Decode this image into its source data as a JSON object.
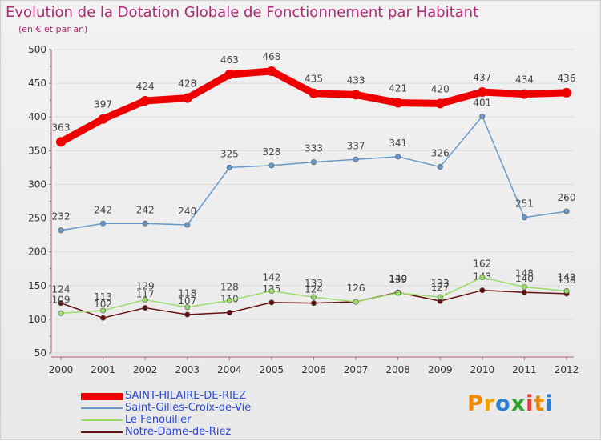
{
  "header": {
    "title": "Evolution de la Dotation Globale de Fonctionnement par Habitant",
    "subtitle": "(en € et par an)"
  },
  "logo": {
    "text": "Proxiti",
    "letters": [
      "P",
      "r",
      "o",
      "x",
      "i",
      "t",
      "i"
    ],
    "colors": [
      "#f08a00",
      "#f0a000",
      "#2a7fd4",
      "#2aa52a",
      "#e23a3a",
      "#f08a00",
      "#2a7fd4"
    ]
  },
  "chart_data": {
    "type": "line",
    "x": [
      "2000",
      "2001",
      "2002",
      "2003",
      "2004",
      "2005",
      "2006",
      "2007",
      "2008",
      "2009",
      "2010",
      "2011",
      "2012"
    ],
    "ylim": [
      50,
      500
    ],
    "yticks": [
      50,
      100,
      150,
      200,
      250,
      300,
      350,
      400,
      450,
      500
    ],
    "ytick_labels": [
      "50",
      "100",
      "150",
      "200",
      "250",
      "300",
      "350",
      "400",
      "450",
      "500"
    ],
    "series": [
      {
        "name": "SAINT-HILAIRE-DE-RIEZ",
        "color": "#ee0000",
        "width": "thick",
        "values": [
          363,
          397,
          424,
          428,
          463,
          468,
          435,
          433,
          421,
          420,
          437,
          434,
          436
        ]
      },
      {
        "name": "Saint-Gilles-Croix-de-Vie",
        "color": "#6699cc",
        "width": "thin",
        "values": [
          232,
          242,
          242,
          240,
          325,
          328,
          333,
          337,
          341,
          326,
          401,
          251,
          260
        ]
      },
      {
        "name": "Le Fenouiller",
        "color": "#99dd66",
        "width": "thin",
        "values": [
          109,
          113,
          129,
          118,
          128,
          142,
          133,
          126,
          139,
          133,
          162,
          148,
          142
        ]
      },
      {
        "name": "Notre-Dame-de-Riez",
        "color": "#661111",
        "width": "thin",
        "values": [
          124,
          102,
          117,
          107,
          110,
          125,
          124,
          126,
          140,
          127,
          143,
          140,
          138
        ]
      }
    ]
  }
}
